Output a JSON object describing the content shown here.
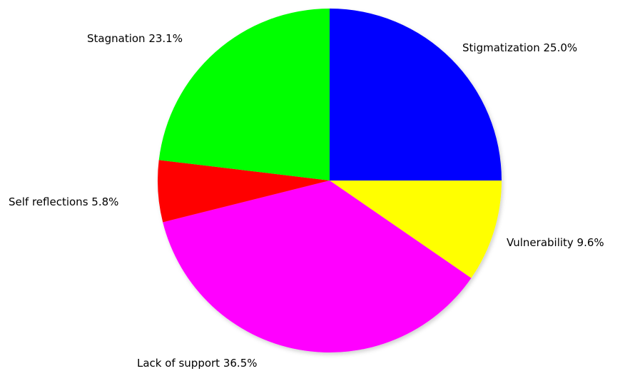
{
  "chart_data": {
    "type": "pie",
    "title": "",
    "slices": [
      {
        "label": "Stigmatization",
        "value": 25.0,
        "display": "25.0%",
        "color": "#0000ff"
      },
      {
        "label": "Vulnerability",
        "value": 9.6,
        "display": "9.6%",
        "color": "#ffff00"
      },
      {
        "label": "Lack of support",
        "value": 36.5,
        "display": "36.5%",
        "color": "#ff00ff"
      },
      {
        "label": "Self reflections",
        "value": 5.8,
        "display": "5.8%",
        "color": "#ff0000"
      },
      {
        "label": "Stagnation",
        "value": 23.1,
        "display": "23.1%",
        "color": "#00ff00"
      }
    ],
    "start_angle_deg": 0,
    "direction": "clockwise",
    "legend": "none"
  }
}
